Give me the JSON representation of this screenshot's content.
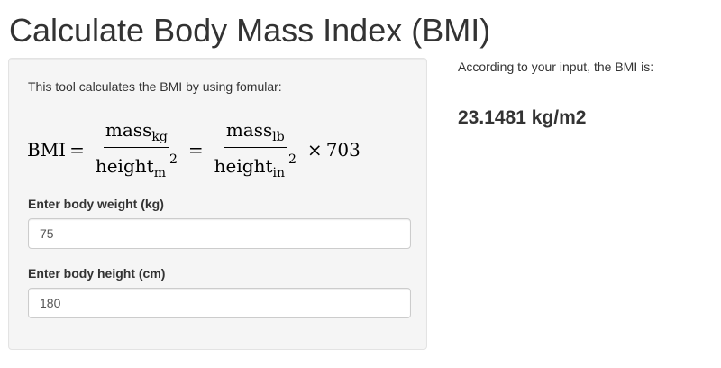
{
  "page": {
    "title": "Calculate Body Mass Index (BMI)"
  },
  "sidebar": {
    "intro": "This tool calculates the BMI by using fomular:",
    "formula": {
      "lhs": "BMI",
      "equals": "=",
      "frac1_num": "mass",
      "frac1_num_sub": "kg",
      "frac1_den": "height",
      "frac1_den_sub": "m",
      "frac1_den_sup": "2",
      "frac2_num": "mass",
      "frac2_num_sub": "lb",
      "frac2_den": "height",
      "frac2_den_sub": "in",
      "frac2_den_sup": "2",
      "times": "×",
      "factor": "703"
    },
    "weight": {
      "label": "Enter body weight (kg)",
      "value": "75"
    },
    "height": {
      "label": "Enter body height (cm)",
      "value": "180"
    }
  },
  "main": {
    "result_intro": "According to your input, the BMI is:",
    "result_value": "23.1481 kg/m2"
  }
}
